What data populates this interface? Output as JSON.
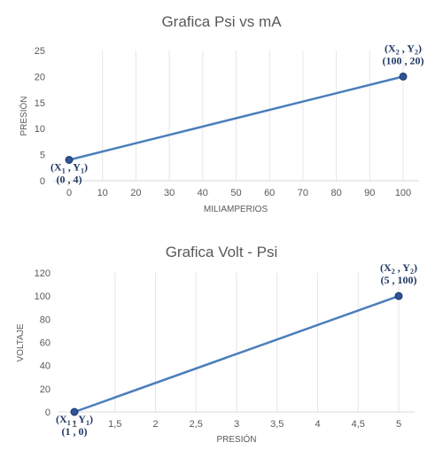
{
  "chart_data": [
    {
      "type": "line",
      "title": "Grafica Psi vs mA",
      "xlabel": "MILIAMPERIOS",
      "ylabel": "PRESIÓN",
      "x": [
        0,
        100
      ],
      "series": [
        {
          "values": [
            4,
            20
          ]
        }
      ],
      "x_ticks": [
        "0",
        "10",
        "20",
        "30",
        "40",
        "50",
        "60",
        "70",
        "80",
        "90",
        "100"
      ],
      "y_ticks": [
        "0",
        "5",
        "10",
        "15",
        "20",
        "25"
      ],
      "xlim": [
        0,
        100
      ],
      "ylim": [
        0,
        25
      ],
      "grid": "vertical",
      "color": "#4a7ebb",
      "annotations": [
        {
          "label": "X",
          "sub": "1",
          "label2": "Y",
          "sub2": "1",
          "coords": "(0 ,  4)"
        },
        {
          "label": "X",
          "sub": "2",
          "label2": "Y",
          "sub2": "2",
          "coords": "(100 ,  20)"
        }
      ]
    },
    {
      "type": "line",
      "title": "Grafica Volt - Psi",
      "xlabel": "PRESIÓN",
      "ylabel": "VOLTAJE",
      "x": [
        1,
        5
      ],
      "series": [
        {
          "values": [
            0,
            100
          ]
        }
      ],
      "x_ticks": [
        "1",
        "1,5",
        "2",
        "2,5",
        "3",
        "3,5",
        "4",
        "4,5",
        "5"
      ],
      "y_ticks": [
        "0",
        "20",
        "40",
        "60",
        "80",
        "100",
        "120"
      ],
      "xlim": [
        1,
        5
      ],
      "ylim": [
        0,
        120
      ],
      "grid": "vertical",
      "color": "#4a7ebb",
      "annotations": [
        {
          "label": "X",
          "sub": "1",
          "label2": "Y",
          "sub2": "1",
          "coords": "(1 ,  0)"
        },
        {
          "label": "X",
          "sub": "2",
          "label2": "Y",
          "sub2": "2",
          "coords": "(5 ,  100)"
        }
      ]
    }
  ]
}
